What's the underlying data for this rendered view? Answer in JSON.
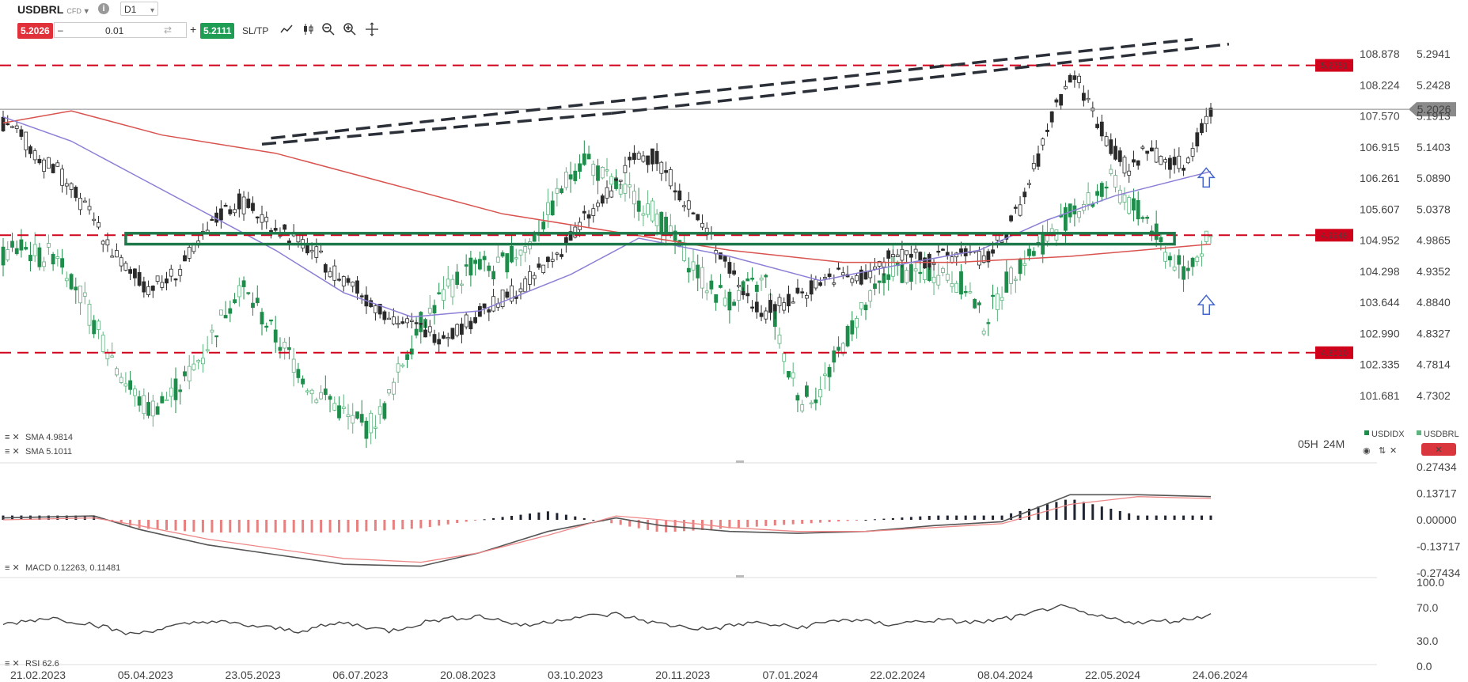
{
  "toolbar": {
    "symbol": "USDBRL",
    "instrument_type": "CFD",
    "timeframe": "D1",
    "sell_price": "5.2026",
    "quantity": "0.01",
    "buy_price": "5.2111",
    "sltp_label": "SL/TP",
    "icons": [
      "info-icon",
      "line-chart-icon",
      "candles-icon",
      "zoom-out-icon",
      "zoom-in-icon",
      "crosshair-icon"
    ]
  },
  "legend": {
    "sma1": "SMA 4.9814",
    "sma2": "SMA 5.1011",
    "macd": "MACD 0.12263, 0.11481",
    "rsi": "RSI 62.6",
    "countdown_h": "05H",
    "countdown_m": "24M",
    "compare_1": "USDIDX",
    "compare_2": "USDBRL"
  },
  "colors": {
    "bull": "#1e8c4a",
    "bear": "#2a2a2a",
    "sma_red": "#d9534f",
    "sma_purple": "#8b7fd6",
    "support_dashed": "#d0021b",
    "zone": "#1e7a4a",
    "trendline": "#2b2f38"
  },
  "chart_data": [
    {
      "type": "candlestick",
      "panel": "price",
      "symbol": "USDBRL",
      "timeframe": "D1",
      "xlabels": [
        "21.02.2023",
        "05.04.2023",
        "23.05.2023",
        "06.07.2023",
        "20.08.2023",
        "03.10.2023",
        "20.11.2023",
        "07.01.2024",
        "22.02.2024",
        "08.04.2024",
        "22.05.2024",
        "24.06.2024"
      ],
      "y_ticks_left": [
        "108.878",
        "108.224",
        "107.570",
        "106.915",
        "106.261",
        "105.607",
        "104.952",
        "104.298",
        "103.644",
        "102.990",
        "102.335",
        "101.681"
      ],
      "y_ticks_right": [
        "5.2941",
        "5.2428",
        "5.1913",
        "5.1403",
        "5.0890",
        "5.0378",
        "4.9865",
        "4.9352",
        "4.8840",
        "4.8327",
        "4.7814",
        "4.7302"
      ],
      "last_price_label": "5.2026",
      "horizontal_levels": [
        {
          "label": "5.2751",
          "value": 5.2751
        },
        {
          "label": "4.9948",
          "value": 4.9948
        },
        {
          "label": "4.8010",
          "value": 4.801
        }
      ],
      "path_usdbrl": [
        [
          0,
          5.18
        ],
        [
          4,
          5.16
        ],
        [
          8,
          5.12
        ],
        [
          12,
          5.1
        ],
        [
          16,
          5.06
        ],
        [
          20,
          5.02
        ],
        [
          24,
          4.97
        ],
        [
          28,
          4.93
        ],
        [
          32,
          4.91
        ],
        [
          36,
          4.92
        ],
        [
          40,
          4.95
        ],
        [
          44,
          4.99
        ],
        [
          48,
          5.03
        ],
        [
          52,
          5.05
        ],
        [
          56,
          5.03
        ],
        [
          60,
          5.01
        ],
        [
          64,
          4.99
        ],
        [
          68,
          4.97
        ],
        [
          72,
          4.94
        ],
        [
          76,
          4.92
        ],
        [
          80,
          4.89
        ],
        [
          84,
          4.87
        ],
        [
          88,
          4.85
        ],
        [
          92,
          4.84
        ],
        [
          96,
          4.83
        ],
        [
          100,
          4.84
        ],
        [
          104,
          4.86
        ],
        [
          108,
          4.88
        ],
        [
          112,
          4.9
        ],
        [
          116,
          4.92
        ],
        [
          120,
          4.95
        ],
        [
          124,
          4.98
        ],
        [
          128,
          5.02
        ],
        [
          132,
          5.05
        ],
        [
          136,
          5.09
        ],
        [
          140,
          5.13
        ],
        [
          144,
          5.12
        ],
        [
          148,
          5.08
        ],
        [
          152,
          5.03
        ],
        [
          156,
          4.99
        ],
        [
          160,
          4.94
        ],
        [
          164,
          4.89
        ],
        [
          168,
          4.87
        ],
        [
          172,
          4.88
        ],
        [
          176,
          4.9
        ],
        [
          180,
          4.92
        ],
        [
          184,
          4.93
        ],
        [
          188,
          4.92
        ],
        [
          192,
          4.94
        ],
        [
          196,
          4.96
        ],
        [
          200,
          4.97
        ],
        [
          204,
          4.95
        ],
        [
          208,
          4.96
        ],
        [
          212,
          4.97
        ],
        [
          216,
          4.95
        ],
        [
          220,
          4.99
        ],
        [
          224,
          5.04
        ],
        [
          228,
          5.12
        ],
        [
          232,
          5.21
        ],
        [
          236,
          5.26
        ],
        [
          240,
          5.2
        ],
        [
          244,
          5.14
        ],
        [
          248,
          5.1
        ],
        [
          252,
          5.14
        ],
        [
          256,
          5.12
        ],
        [
          260,
          5.11
        ],
        [
          264,
          5.17
        ],
        [
          266,
          5.2
        ]
      ],
      "path_usdidx": [
        [
          0,
          104.6
        ],
        [
          4,
          104.8
        ],
        [
          8,
          104.6
        ],
        [
          12,
          104.7
        ],
        [
          16,
          104.0
        ],
        [
          20,
          103.2
        ],
        [
          24,
          102.5
        ],
        [
          28,
          101.8
        ],
        [
          32,
          101.4
        ],
        [
          36,
          101.6
        ],
        [
          40,
          102.0
        ],
        [
          44,
          102.6
        ],
        [
          48,
          103.3
        ],
        [
          52,
          104.0
        ],
        [
          56,
          103.5
        ],
        [
          60,
          102.9
        ],
        [
          64,
          102.4
        ],
        [
          68,
          101.8
        ],
        [
          72,
          101.6
        ],
        [
          76,
          101.2
        ],
        [
          80,
          101.0
        ],
        [
          84,
          101.4
        ],
        [
          88,
          102.4
        ],
        [
          92,
          103.2
        ],
        [
          96,
          103.7
        ],
        [
          100,
          104.1
        ],
        [
          104,
          104.5
        ],
        [
          108,
          104.3
        ],
        [
          112,
          104.6
        ],
        [
          116,
          104.9
        ],
        [
          120,
          105.5
        ],
        [
          124,
          106.2
        ],
        [
          128,
          106.7
        ],
        [
          132,
          106.3
        ],
        [
          136,
          106.0
        ],
        [
          140,
          105.8
        ],
        [
          144,
          105.5
        ],
        [
          148,
          104.9
        ],
        [
          152,
          104.4
        ],
        [
          156,
          103.9
        ],
        [
          160,
          103.7
        ],
        [
          164,
          103.9
        ],
        [
          168,
          104.1
        ],
        [
          172,
          102.4
        ],
        [
          176,
          101.6
        ],
        [
          180,
          101.8
        ],
        [
          184,
          102.6
        ],
        [
          188,
          103.3
        ],
        [
          192,
          103.8
        ],
        [
          196,
          104.4
        ],
        [
          200,
          104.2
        ],
        [
          204,
          104.3
        ],
        [
          208,
          104.2
        ],
        [
          212,
          104.0
        ],
        [
          216,
          103.2
        ],
        [
          220,
          103.9
        ],
        [
          224,
          104.5
        ],
        [
          228,
          104.8
        ],
        [
          232,
          105.2
        ],
        [
          236,
          105.6
        ],
        [
          240,
          105.8
        ],
        [
          244,
          106.2
        ],
        [
          248,
          105.7
        ],
        [
          252,
          105.4
        ],
        [
          256,
          104.7
        ],
        [
          260,
          104.3
        ],
        [
          264,
          104.8
        ],
        [
          266,
          105.0
        ]
      ],
      "series": [
        {
          "name": "SMA 4.9814",
          "color": "#d9534f",
          "points": [
            [
              0,
              5.18
            ],
            [
              15,
              5.2
            ],
            [
              35,
              5.16
            ],
            [
              60,
              5.13
            ],
            [
              85,
              5.08
            ],
            [
              110,
              5.03
            ],
            [
              135,
              5.0
            ],
            [
              160,
              4.97
            ],
            [
              185,
              4.95
            ],
            [
              210,
              4.95
            ],
            [
              235,
              4.96
            ],
            [
              266,
              4.98
            ]
          ]
        },
        {
          "name": "SMA 5.1011",
          "color": "#8b7fd6",
          "points": [
            [
              0,
              5.19
            ],
            [
              15,
              5.15
            ],
            [
              30,
              5.09
            ],
            [
              45,
              5.03
            ],
            [
              60,
              4.97
            ],
            [
              75,
              4.9
            ],
            [
              90,
              4.86
            ],
            [
              105,
              4.87
            ],
            [
              125,
              4.93
            ],
            [
              140,
              4.99
            ],
            [
              160,
              4.96
            ],
            [
              180,
              4.92
            ],
            [
              200,
              4.95
            ],
            [
              215,
              4.97
            ],
            [
              230,
              5.02
            ],
            [
              245,
              5.06
            ],
            [
              266,
              5.1
            ]
          ]
        }
      ],
      "trendlines": [
        {
          "points": [
            [
              57,
              5.145
            ],
            [
              134,
              5.196
            ]
          ]
        },
        {
          "points": [
            [
              59,
              5.155
            ],
            [
              262,
              5.318
            ]
          ]
        },
        {
          "points": [
            [
              134,
              5.196
            ],
            [
              270,
              5.31
            ]
          ]
        }
      ],
      "zone": {
        "x_range": [
          27,
          258
        ],
        "y_range": [
          4.98,
          4.998
        ]
      },
      "arrows": [
        {
          "x": 265,
          "y": 5.09
        },
        {
          "x": 265,
          "y": 4.88
        }
      ]
    },
    {
      "type": "histogram+line",
      "panel": "macd",
      "title": "MACD 0.12263, 0.11481",
      "y_ticks": [
        "0.27434",
        "0.13717",
        "0.00000",
        "-0.13717",
        "-0.27434"
      ],
      "macd": [
        [
          0,
          0.01
        ],
        [
          20,
          0.02
        ],
        [
          30,
          -0.05
        ],
        [
          45,
          -0.13
        ],
        [
          60,
          -0.18
        ],
        [
          75,
          -0.23
        ],
        [
          92,
          -0.24
        ],
        [
          105,
          -0.17
        ],
        [
          120,
          -0.06
        ],
        [
          135,
          0.01
        ],
        [
          145,
          -0.03
        ],
        [
          160,
          -0.06
        ],
        [
          175,
          -0.07
        ],
        [
          190,
          -0.06
        ],
        [
          205,
          -0.03
        ],
        [
          220,
          -0.01
        ],
        [
          235,
          0.13
        ],
        [
          250,
          0.13
        ],
        [
          266,
          0.12
        ]
      ],
      "signal": [
        [
          0,
          0.0
        ],
        [
          20,
          0.01
        ],
        [
          30,
          -0.03
        ],
        [
          45,
          -0.1
        ],
        [
          60,
          -0.15
        ],
        [
          75,
          -0.2
        ],
        [
          92,
          -0.22
        ],
        [
          105,
          -0.17
        ],
        [
          120,
          -0.08
        ],
        [
          135,
          0.02
        ],
        [
          145,
          0.0
        ],
        [
          160,
          -0.04
        ],
        [
          175,
          -0.06
        ],
        [
          190,
          -0.06
        ],
        [
          205,
          -0.04
        ],
        [
          220,
          -0.02
        ],
        [
          235,
          0.08
        ],
        [
          250,
          0.12
        ],
        [
          266,
          0.11
        ]
      ]
    },
    {
      "type": "line",
      "panel": "rsi",
      "title": "RSI 62.6",
      "y_ticks": [
        "100.0",
        "70.0",
        "30.0",
        "0.0"
      ],
      "rsi": [
        [
          0,
          50
        ],
        [
          10,
          58
        ],
        [
          20,
          50
        ],
        [
          28,
          38
        ],
        [
          35,
          45
        ],
        [
          45,
          54
        ],
        [
          55,
          48
        ],
        [
          65,
          42
        ],
        [
          75,
          52
        ],
        [
          85,
          42
        ],
        [
          95,
          55
        ],
        [
          105,
          60
        ],
        [
          115,
          48
        ],
        [
          125,
          58
        ],
        [
          135,
          62
        ],
        [
          145,
          50
        ],
        [
          155,
          44
        ],
        [
          165,
          52
        ],
        [
          175,
          46
        ],
        [
          185,
          56
        ],
        [
          195,
          50
        ],
        [
          205,
          55
        ],
        [
          215,
          52
        ],
        [
          225,
          60
        ],
        [
          232,
          72
        ],
        [
          240,
          60
        ],
        [
          250,
          52
        ],
        [
          260,
          55
        ],
        [
          266,
          62
        ]
      ]
    }
  ]
}
